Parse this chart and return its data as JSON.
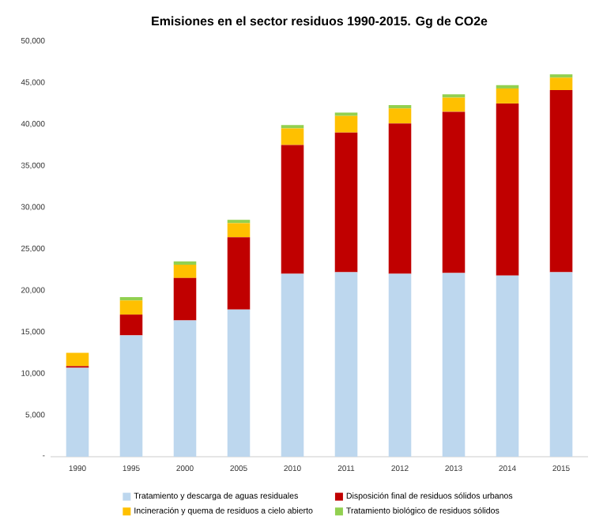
{
  "chart_data": {
    "type": "bar",
    "stacked": true,
    "title": "Emisiones en el sector residuos 1990-2015. Gg de CO2e",
    "categories": [
      "1990",
      "1995",
      "2000",
      "2005",
      "2010",
      "2011",
      "2012",
      "2013",
      "2014",
      "2015"
    ],
    "series": [
      {
        "name": "Tratamiento y descarga de aguas residuales",
        "color": "#bdd7ee",
        "values": [
          10700,
          14600,
          16400,
          17700,
          22000,
          22200,
          22000,
          22100,
          21800,
          22200
        ]
      },
      {
        "name": "Disposición final de residuos sólidos urbanos",
        "color": "#c00000",
        "values": [
          200,
          2500,
          5100,
          8700,
          15500,
          16800,
          18100,
          19400,
          20700,
          21900
        ]
      },
      {
        "name": "Incineración y quema de residuos a cielo abierto",
        "color": "#ffc000",
        "values": [
          1600,
          1700,
          1600,
          1700,
          2000,
          2000,
          1800,
          1700,
          1800,
          1500
        ]
      },
      {
        "name": "Tratamiento biológico de residuos sólidos",
        "color": "#92d050",
        "values": [
          0,
          400,
          400,
          400,
          400,
          400,
          400,
          400,
          400,
          400
        ]
      }
    ],
    "ylim": [
      0,
      50000
    ],
    "yticks": [
      {
        "value": 0,
        "label": "-"
      },
      {
        "value": 5000,
        "label": "5,000"
      },
      {
        "value": 10000,
        "label": "10,000"
      },
      {
        "value": 15000,
        "label": "15,000"
      },
      {
        "value": 20000,
        "label": "20,000"
      },
      {
        "value": 25000,
        "label": "25,000"
      },
      {
        "value": 30000,
        "label": "30,000"
      },
      {
        "value": 35000,
        "label": "35,000"
      },
      {
        "value": 40000,
        "label": "40,000"
      },
      {
        "value": 45000,
        "label": "45,000"
      },
      {
        "value": 50000,
        "label": "50,000"
      }
    ],
    "legend": "bottom"
  }
}
